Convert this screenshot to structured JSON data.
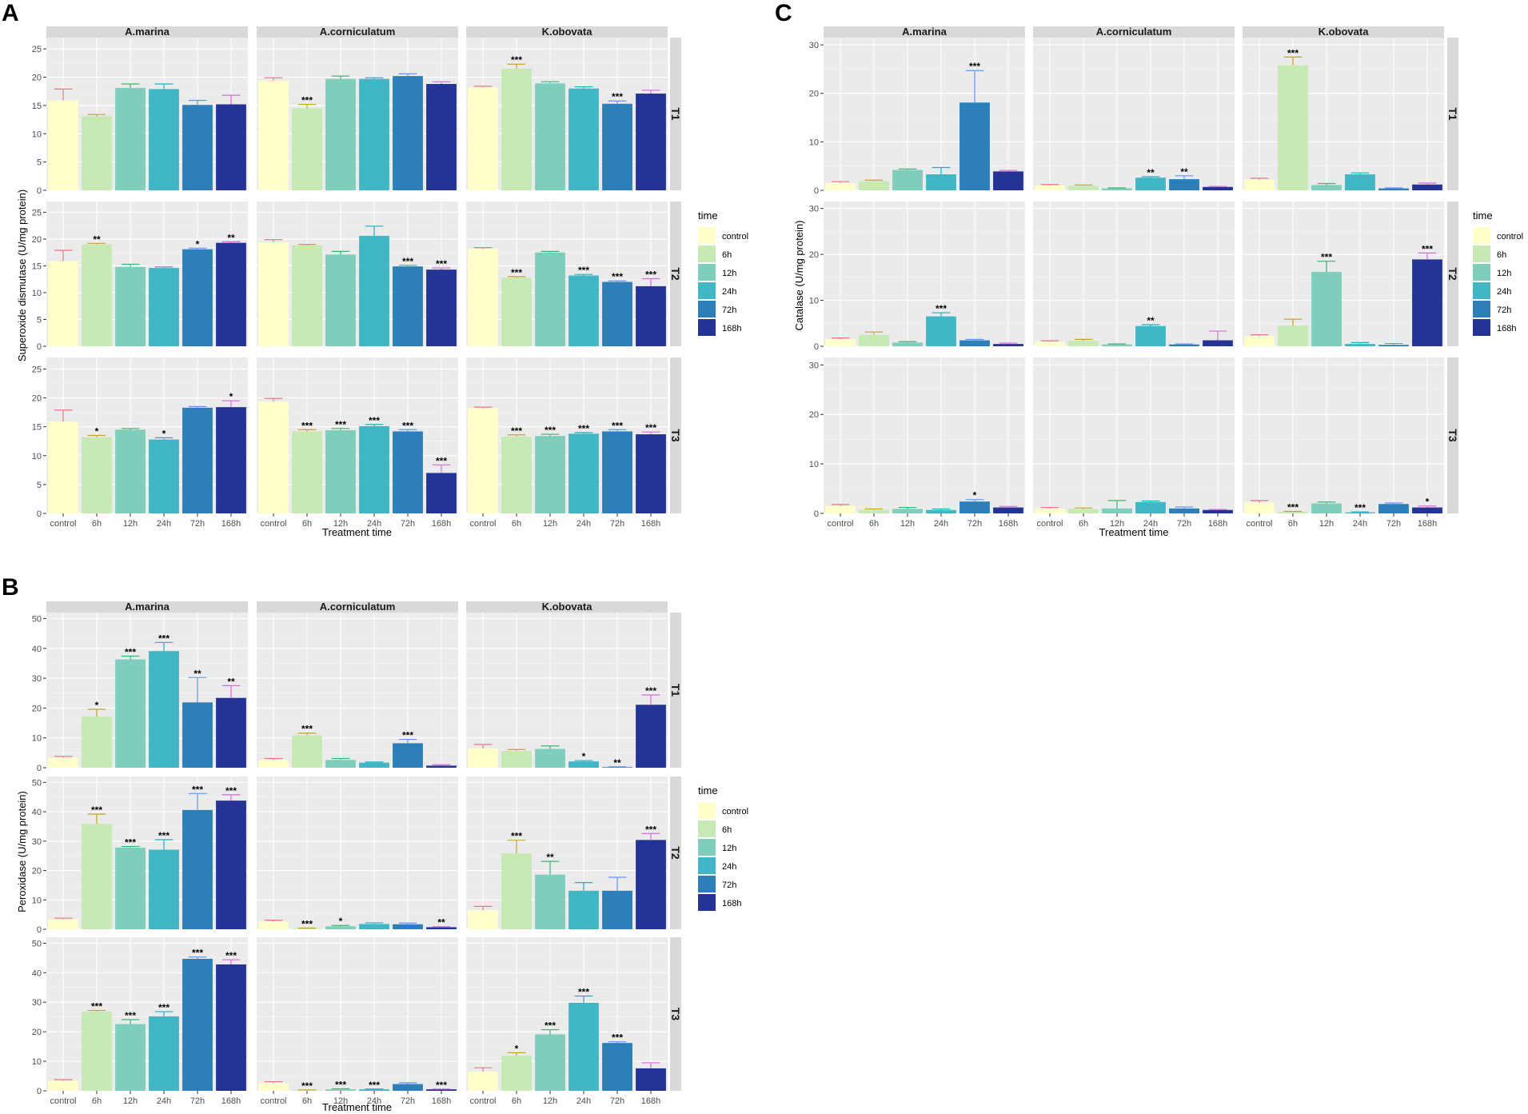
{
  "legend": {
    "title": "time",
    "entries": [
      "control",
      "6h",
      "12h",
      "24h",
      "72h",
      "168h"
    ],
    "colors": [
      "#ffffcc",
      "#c7e9b4",
      "#7fcdbb",
      "#41b6c4",
      "#2c7fb8",
      "#253494"
    ],
    "error_colors": [
      "#f0758a",
      "#c9a12a",
      "#3cb371",
      "#1fb0c0",
      "#5f95ff",
      "#d96bd9"
    ]
  },
  "chart_data": [
    {
      "panel": "A",
      "type": "bar",
      "ylabel": "Superoxide dismutase (U/mg protein)",
      "xlabel": "Treatment time",
      "categories": [
        "control",
        "6h",
        "12h",
        "24h",
        "72h",
        "168h"
      ],
      "species": [
        "A.marina",
        "A.corniculatum",
        "K.obovata"
      ],
      "treatments": [
        "T1",
        "T2",
        "T3"
      ],
      "ylim": [
        0,
        27
      ],
      "yticks": [
        0,
        5,
        10,
        15,
        20,
        25
      ],
      "cells": [
        [
          {
            "values": [
              15.9,
              13.1,
              18.1,
              17.9,
              15.1,
              15.2
            ],
            "errors": [
              2.0,
              0.3,
              0.7,
              0.9,
              0.8,
              1.6
            ],
            "sig": [
              "",
              "",
              "",
              "",
              "",
              ""
            ]
          },
          {
            "values": [
              19.4,
              14.5,
              19.7,
              19.7,
              20.2,
              18.8
            ],
            "errors": [
              0.5,
              0.7,
              0.5,
              0.2,
              0.4,
              0.4
            ],
            "sig": [
              "",
              "***",
              "",
              "",
              "",
              ""
            ]
          },
          {
            "values": [
              18.2,
              21.5,
              18.9,
              18.0,
              15.3,
              17.1
            ],
            "errors": [
              0.2,
              0.8,
              0.3,
              0.3,
              0.5,
              0.6
            ],
            "sig": [
              "",
              "***",
              "",
              "",
              "***",
              ""
            ]
          }
        ],
        [
          {
            "values": [
              15.9,
              19.0,
              14.8,
              14.6,
              18.1,
              19.3
            ],
            "errors": [
              2.0,
              0.2,
              0.5,
              0.2,
              0.2,
              0.2
            ],
            "sig": [
              "",
              "**",
              "",
              "",
              "*",
              "**"
            ]
          },
          {
            "values": [
              19.4,
              18.8,
              17.1,
              20.6,
              14.9,
              14.3
            ],
            "errors": [
              0.5,
              0.2,
              0.6,
              1.8,
              0.2,
              0.3
            ],
            "sig": [
              "",
              "",
              "",
              "",
              "***",
              "***"
            ]
          },
          {
            "values": [
              18.2,
              12.8,
              17.5,
              13.2,
              12.0,
              11.2
            ],
            "errors": [
              0.2,
              0.2,
              0.2,
              0.2,
              0.2,
              1.4
            ],
            "sig": [
              "",
              "***",
              "",
              "***",
              "***",
              "***"
            ]
          }
        ],
        [
          {
            "values": [
              15.9,
              13.2,
              14.5,
              12.8,
              18.3,
              18.4
            ],
            "errors": [
              2.0,
              0.3,
              0.2,
              0.3,
              0.2,
              1.1
            ],
            "sig": [
              "",
              "*",
              "",
              "*",
              "",
              "*"
            ]
          },
          {
            "values": [
              19.4,
              14.2,
              14.4,
              15.1,
              14.2,
              7.0
            ],
            "errors": [
              0.5,
              0.3,
              0.3,
              0.3,
              0.3,
              1.4
            ],
            "sig": [
              "",
              "***",
              "***",
              "***",
              "***",
              "***"
            ]
          },
          {
            "values": [
              18.2,
              13.3,
              13.4,
              13.8,
              14.2,
              13.7
            ],
            "errors": [
              0.2,
              0.3,
              0.3,
              0.2,
              0.3,
              0.4
            ],
            "sig": [
              "",
              "***",
              "***",
              "***",
              "***",
              "***"
            ]
          }
        ]
      ]
    },
    {
      "panel": "B",
      "type": "bar",
      "ylabel": "Peroxidase (U/mg protein)",
      "xlabel": "Treatment time",
      "categories": [
        "control",
        "6h",
        "12h",
        "24h",
        "72h",
        "168h"
      ],
      "species": [
        "A.marina",
        "A.corniculatum",
        "K.obovata"
      ],
      "treatments": [
        "T1",
        "T2",
        "T3"
      ],
      "ylim": [
        0,
        52
      ],
      "yticks": [
        0,
        10,
        20,
        30,
        40,
        50
      ],
      "cells": [
        [
          {
            "values": [
              3.4,
              17.1,
              36.3,
              39.1,
              21.9,
              23.4
            ],
            "errors": [
              0.4,
              2.5,
              1.1,
              2.9,
              8.3,
              4.1
            ],
            "sig": [
              "",
              "*",
              "***",
              "***",
              "**",
              "**"
            ]
          },
          {
            "values": [
              2.6,
              10.9,
              2.6,
              1.7,
              8.2,
              0.7
            ],
            "errors": [
              0.5,
              0.7,
              0.5,
              0.2,
              1.3,
              0.3
            ],
            "sig": [
              "",
              "***",
              "",
              "",
              "***",
              ""
            ]
          },
          {
            "values": [
              6.5,
              5.6,
              6.3,
              2.1,
              0.2,
              21.1
            ],
            "errors": [
              1.3,
              0.5,
              1.0,
              0.3,
              0.1,
              3.3
            ],
            "sig": [
              "",
              "",
              "",
              "*",
              "**",
              "***"
            ]
          }
        ],
        [
          {
            "values": [
              3.4,
              35.9,
              27.8,
              27.1,
              40.6,
              43.8
            ],
            "errors": [
              0.4,
              3.3,
              0.4,
              3.4,
              5.6,
              2.0
            ],
            "sig": [
              "",
              "***",
              "***",
              "***",
              "***",
              "***"
            ]
          },
          {
            "values": [
              2.6,
              0.3,
              1.0,
              1.8,
              1.7,
              0.7
            ],
            "errors": [
              0.5,
              0.1,
              0.3,
              0.4,
              0.4,
              0.2
            ],
            "sig": [
              "",
              "***",
              "*",
              "",
              "",
              "**"
            ]
          },
          {
            "values": [
              6.5,
              25.8,
              18.6,
              13.1,
              13.1,
              30.4
            ],
            "errors": [
              1.3,
              4.5,
              4.5,
              2.8,
              4.6,
              2.2
            ],
            "sig": [
              "",
              "***",
              "**",
              "",
              "",
              "***"
            ]
          }
        ],
        [
          {
            "values": [
              3.4,
              26.8,
              22.6,
              25.2,
              44.7,
              42.8
            ],
            "errors": [
              0.4,
              0.4,
              1.5,
              1.6,
              0.6,
              1.6
            ],
            "sig": [
              "",
              "***",
              "***",
              "***",
              "***",
              "***"
            ]
          },
          {
            "values": [
              2.6,
              0.2,
              0.5,
              0.5,
              2.3,
              0.5
            ],
            "errors": [
              0.5,
              0.1,
              0.2,
              0.1,
              0.4,
              0.1
            ],
            "sig": [
              "",
              "***",
              "***",
              "***",
              "",
              "***"
            ]
          },
          {
            "values": [
              6.5,
              11.9,
              19.1,
              29.8,
              16.2,
              7.6
            ],
            "errors": [
              1.3,
              1.0,
              1.6,
              2.3,
              0.4,
              1.9
            ],
            "sig": [
              "",
              "*",
              "***",
              "***",
              "***",
              ""
            ]
          }
        ]
      ]
    },
    {
      "panel": "C",
      "type": "bar",
      "ylabel": "Catalase (U/mg protein)",
      "xlabel": "Treatment time",
      "categories": [
        "control",
        "6h",
        "12h",
        "24h",
        "72h",
        "168h"
      ],
      "species": [
        "A.marina",
        "A.corniculatum",
        "K.obovata"
      ],
      "treatments": [
        "T1",
        "T2",
        "T3"
      ],
      "ylim": [
        0,
        31.5
      ],
      "yticks": [
        0,
        10,
        20,
        30
      ],
      "cells": [
        [
          {
            "values": [
              1.5,
              1.9,
              4.2,
              3.3,
              18.1,
              3.9
            ],
            "errors": [
              0.3,
              0.2,
              0.2,
              1.4,
              6.6,
              0.2
            ],
            "sig": [
              "",
              "",
              "",
              "",
              "***",
              ""
            ]
          },
          {
            "values": [
              1.0,
              0.9,
              0.4,
              2.6,
              2.3,
              0.7
            ],
            "errors": [
              0.2,
              0.2,
              0.1,
              0.2,
              0.7,
              0.1
            ],
            "sig": [
              "",
              "",
              "",
              "**",
              "**",
              ""
            ]
          },
          {
            "values": [
              2.2,
              25.8,
              1.1,
              3.3,
              0.4,
              1.2
            ],
            "errors": [
              0.3,
              1.7,
              0.3,
              0.3,
              0.1,
              0.3
            ],
            "sig": [
              "",
              "***",
              "",
              "",
              "",
              ""
            ]
          }
        ],
        [
          {
            "values": [
              1.5,
              2.5,
              0.8,
              6.5,
              1.3,
              0.5
            ],
            "errors": [
              0.3,
              0.6,
              0.2,
              0.8,
              0.2,
              0.2
            ],
            "sig": [
              "",
              "",
              "",
              "***",
              "",
              ""
            ]
          },
          {
            "values": [
              1.0,
              1.2,
              0.4,
              4.4,
              0.4,
              1.3
            ],
            "errors": [
              0.2,
              0.3,
              0.1,
              0.3,
              0.1,
              2.0
            ],
            "sig": [
              "",
              "",
              "",
              "**",
              "",
              ""
            ]
          },
          {
            "values": [
              2.2,
              4.5,
              16.2,
              0.5,
              0.3,
              18.9
            ],
            "errors": [
              0.3,
              1.4,
              2.3,
              0.3,
              0.3,
              1.4
            ],
            "sig": [
              "",
              "",
              "***",
              "",
              "",
              "***"
            ]
          }
        ],
        [
          {
            "values": [
              1.5,
              0.7,
              0.9,
              0.7,
              2.4,
              1.2
            ],
            "errors": [
              0.3,
              0.2,
              0.3,
              0.2,
              0.4,
              0.2
            ],
            "sig": [
              "",
              "",
              "",
              "",
              "*",
              ""
            ]
          },
          {
            "values": [
              1.0,
              0.9,
              1.0,
              2.3,
              1.0,
              0.7
            ],
            "errors": [
              0.2,
              0.2,
              1.6,
              0.2,
              0.3,
              0.1
            ],
            "sig": [
              "",
              "",
              "",
              "",
              "",
              ""
            ]
          },
          {
            "values": [
              2.2,
              0.3,
              2.0,
              0.2,
              1.9,
              1.2
            ],
            "errors": [
              0.4,
              0.1,
              0.3,
              0.1,
              0.2,
              0.3
            ],
            "sig": [
              "",
              "***",
              "",
              "***",
              "",
              "*"
            ]
          }
        ]
      ]
    }
  ]
}
